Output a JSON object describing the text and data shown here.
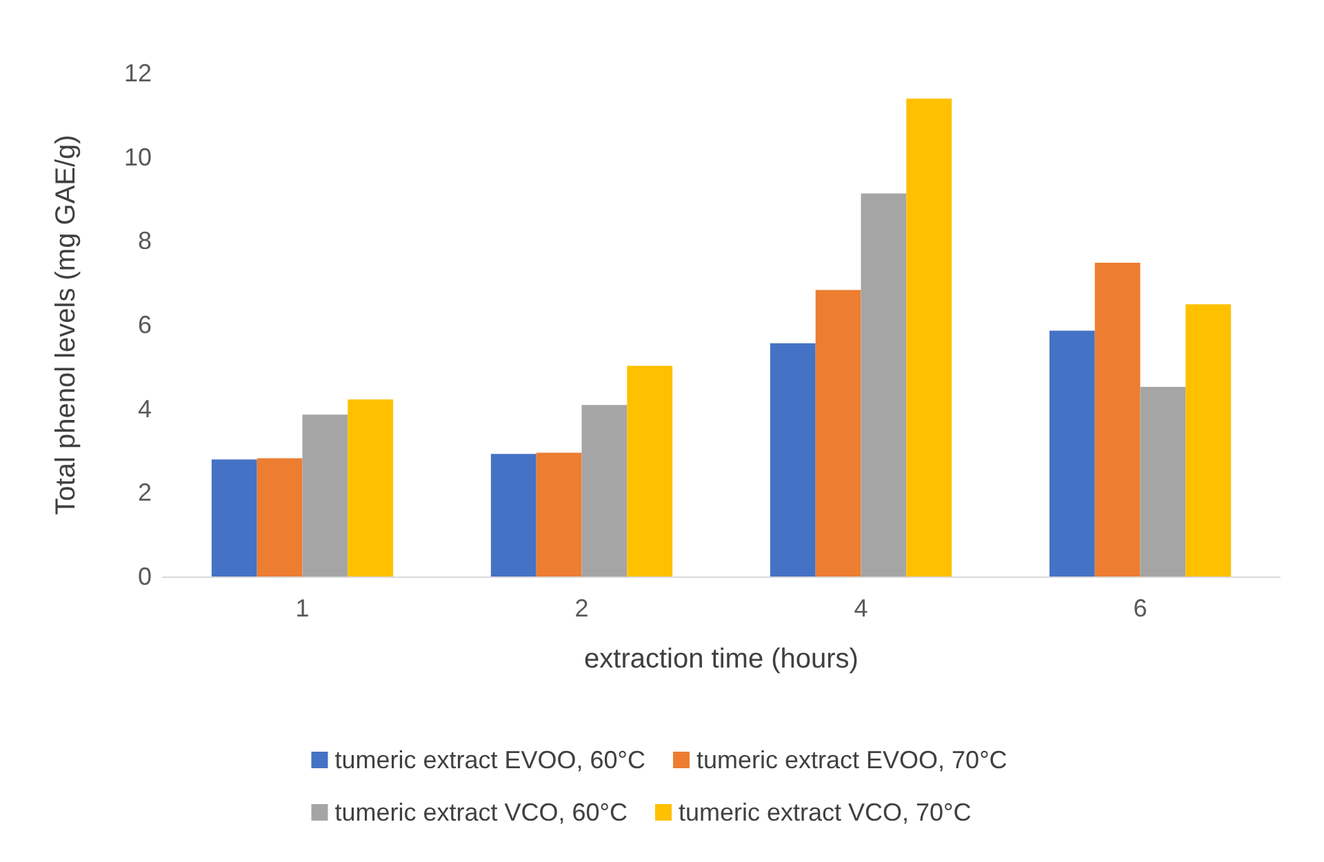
{
  "chart_data": {
    "type": "bar",
    "xlabel": "extraction time (hours)",
    "ylabel": "Total phenol levels (mg GAE/g)",
    "categories": [
      "1",
      "2",
      "4",
      "6"
    ],
    "series": [
      {
        "name": "tumeric extract EVOO, 60°C",
        "color": "#4472c4",
        "values": [
          2.79,
          2.92,
          5.56,
          5.86
        ]
      },
      {
        "name": "tumeric extract EVOO, 70°C",
        "color": "#ed7d31",
        "values": [
          2.82,
          2.95,
          6.83,
          7.48
        ]
      },
      {
        "name": "tumeric extract VCO, 60°C",
        "color": "#a5a5a5",
        "values": [
          3.86,
          4.09,
          9.13,
          4.52
        ]
      },
      {
        "name": "tumeric extract VCO, 70°C",
        "color": "#ffc000",
        "values": [
          4.22,
          5.02,
          11.39,
          6.49
        ]
      }
    ],
    "ylim": [
      0,
      12
    ],
    "yticks": [
      0,
      2,
      4,
      6,
      8,
      10,
      12
    ],
    "grid": false,
    "legend": "bottom"
  }
}
